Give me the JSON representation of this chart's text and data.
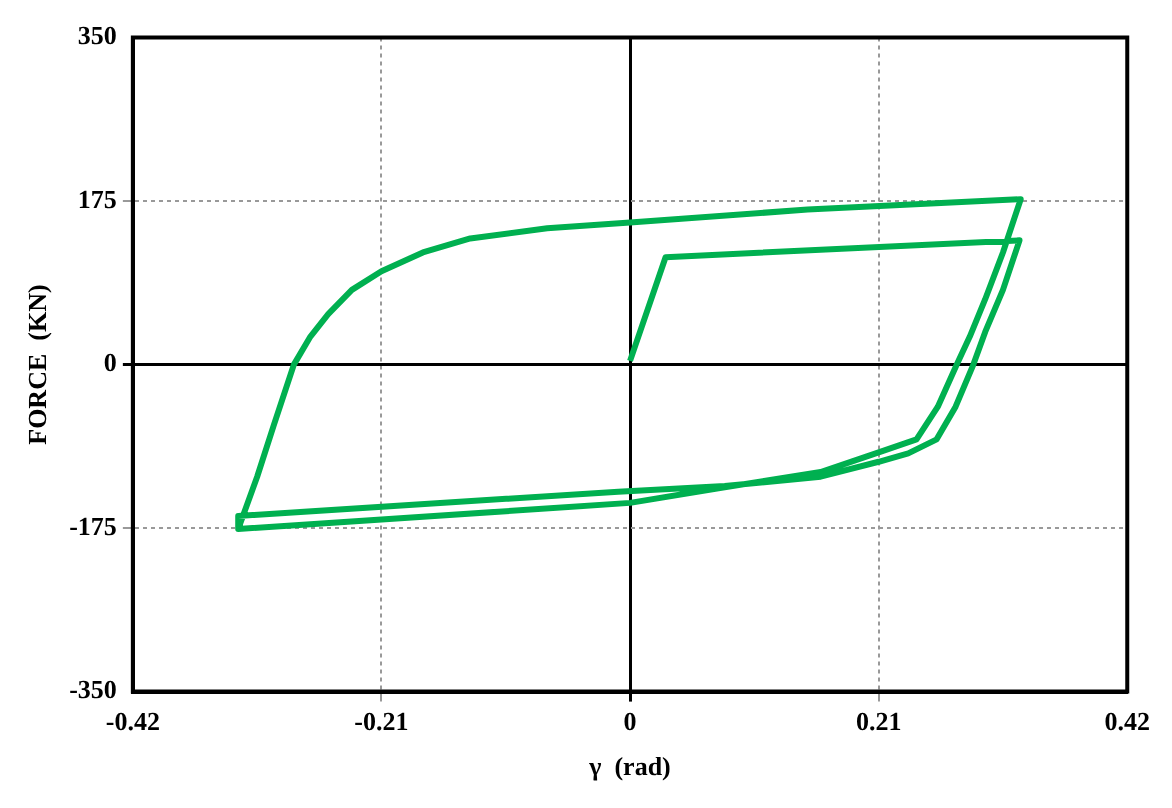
{
  "chart_data": {
    "type": "line",
    "xlabel": "γ  (rad)",
    "ylabel": "FORCE  (KN)",
    "series": [
      {
        "color": "#00b050",
        "x": [
          0,
          0.03,
          0.329,
          0.315,
          0.3,
          0.29,
          0.275,
          0.259,
          0.235,
          0.21,
          0.161,
          0.08,
          -0.01,
          -0.331,
          -0.331,
          -0.315,
          -0.301,
          -0.284,
          -0.27,
          -0.255,
          -0.235,
          -0.21,
          -0.175,
          -0.135,
          -0.07,
          0,
          0.15,
          0.33,
          0.315,
          0.3,
          0.287,
          0.276,
          0.26,
          0.242,
          0.21,
          0.161,
          0.076,
          0,
          -0.331
        ],
        "values": [
          4,
          115,
          133,
          80,
          35,
          0,
          -45,
          -80,
          -95,
          -104,
          -120,
          -130,
          -136,
          -162,
          -176,
          -120,
          -65,
          0,
          30,
          54,
          80,
          100,
          120,
          135,
          146,
          152,
          166,
          177,
          120,
          70,
          30,
          0,
          -45,
          -80,
          -94,
          -115,
          -132,
          -148,
          -176
        ]
      }
    ],
    "xlim": [
      -0.42,
      0.42
    ],
    "xticks": [
      -0.42,
      -0.21,
      0,
      0.21,
      0.42
    ],
    "ylim": [
      -350,
      350
    ],
    "yticks": [
      -350,
      -175,
      0,
      175,
      350
    ],
    "grid": true,
    "marker": "none",
    "line_style": "solid"
  }
}
